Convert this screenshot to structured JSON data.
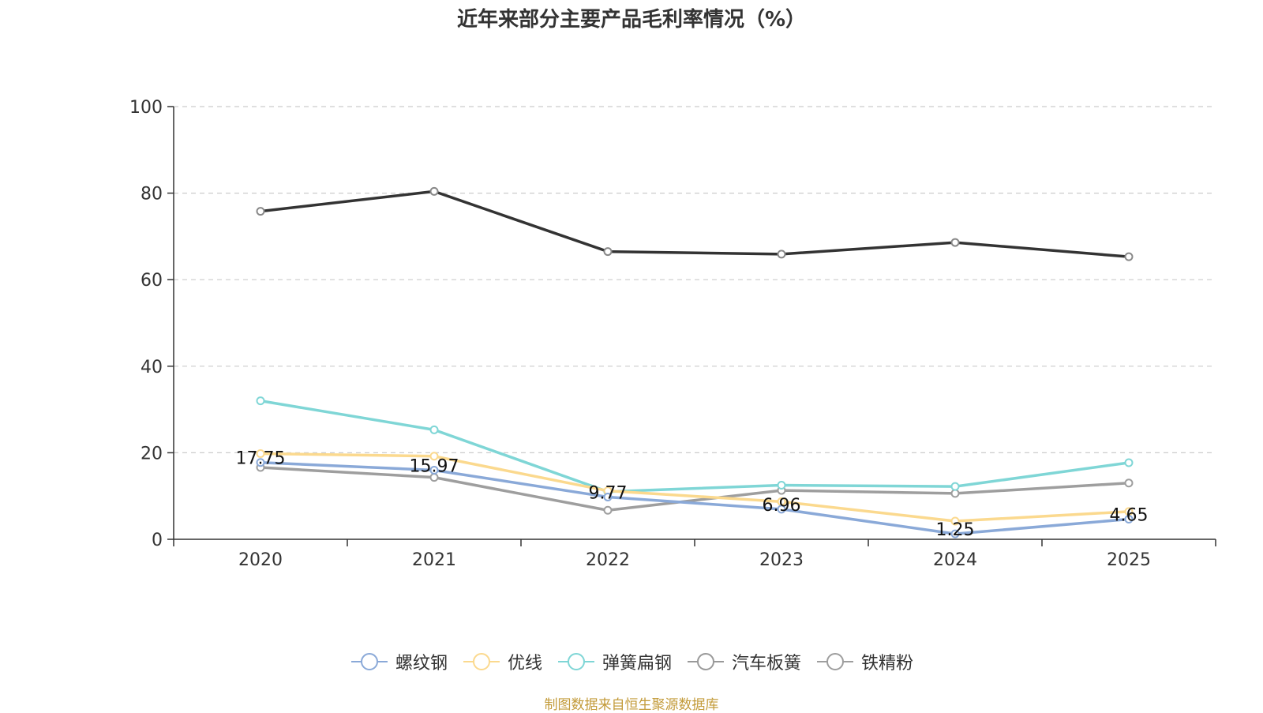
{
  "chart_data": {
    "type": "line",
    "title": "近年来部分主要产品毛利率情况（%）",
    "categories": [
      "2020",
      "2021",
      "2022",
      "2023",
      "2024",
      "2025"
    ],
    "ylim": [
      0,
      100
    ],
    "yticks": [
      "0",
      "20",
      "40",
      "60",
      "80",
      "100"
    ],
    "grid": true,
    "legend_position": "bottom",
    "series": [
      {
        "name": "螺纹钢",
        "color": "#8aa9d8",
        "values": [
          17.75,
          15.97,
          9.77,
          6.96,
          1.25,
          4.65
        ],
        "labels": [
          "17.75",
          "15.97",
          "9.77",
          "6.96",
          "1.25",
          "4.65"
        ]
      },
      {
        "name": "优线",
        "color": "#fbd98e",
        "values": [
          19.8,
          19.2,
          11.2,
          8.7,
          4.2,
          6.4
        ]
      },
      {
        "name": "弹簧扁钢",
        "color": "#7fd6d6",
        "values": [
          32.0,
          25.3,
          11.0,
          12.5,
          12.2,
          17.7
        ]
      },
      {
        "name": "汽车板簧",
        "color": "#333333",
        "values": [
          75.8,
          80.4,
          66.5,
          65.9,
          68.6,
          65.3
        ]
      },
      {
        "name": "铁精粉",
        "color": "#9e9e9e",
        "values": [
          16.6,
          14.3,
          6.7,
          11.3,
          10.6,
          13.0
        ]
      }
    ],
    "source": "制图数据来自恒生聚源数据库"
  }
}
